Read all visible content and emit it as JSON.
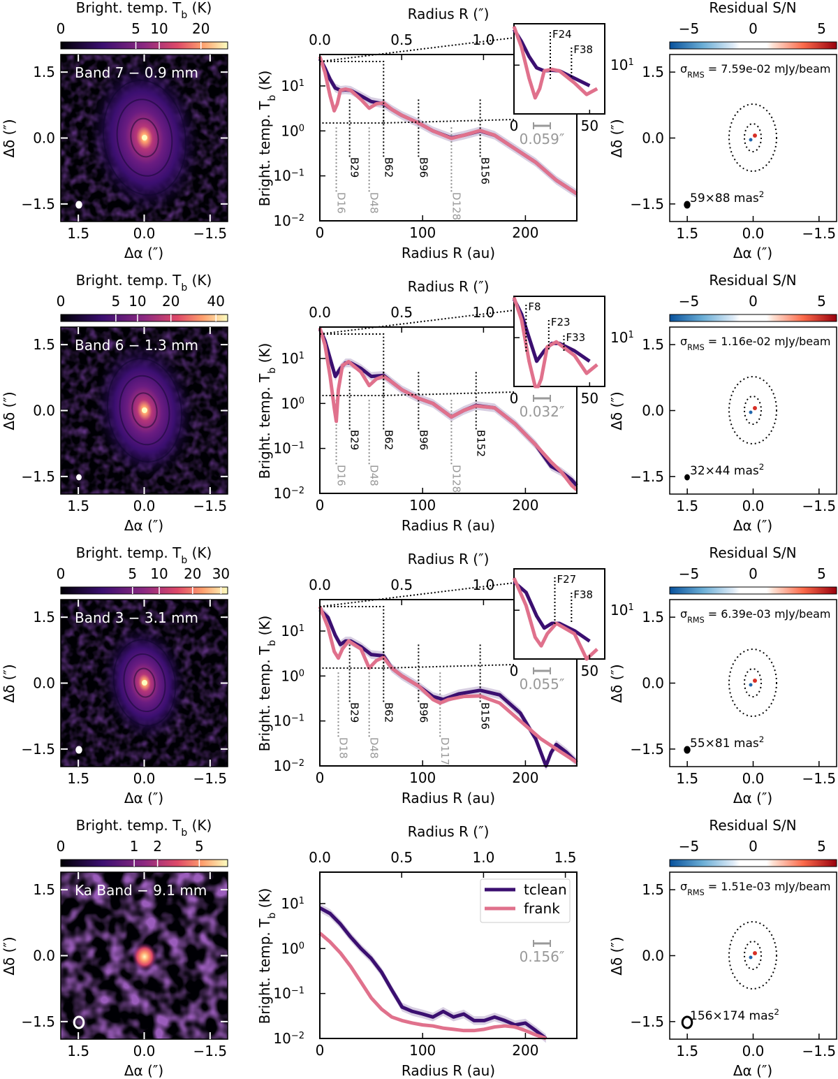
{
  "legend": {
    "tclean": "tclean",
    "frank": "frank"
  },
  "common": {
    "cbar_title": "Bright. temp. T",
    "cbar_title_sub": "b",
    "cbar_title_unit": " (K)",
    "resid_title": "Residual S/N",
    "ylabel_dec": "Δδ (″)",
    "xlabel_ra": "Δα (″)",
    "ylabel_tb": "Bright. temp. T",
    "ylabel_tb_sub": "b",
    "ylabel_tb_unit": " (K)",
    "xlabel_au": "Radius R (au)",
    "xlabel_arcsec": "Radius R (″)",
    "sigma_prefix": "σ",
    "sigma_sub": "RMS",
    "resid_ticks": [
      "−5",
      "0",
      "5"
    ],
    "img_ticks": [
      "1.5",
      "0.0",
      "−1.5"
    ],
    "prof_xticks": [
      "0",
      "100",
      "200"
    ],
    "prof_top_ticks": [
      "0.0",
      "0.5",
      "1.0",
      "1.5"
    ],
    "prof_yticks": [
      "10",
      "10",
      "10",
      "10"
    ],
    "prof_yexp": [
      "1",
      "0",
      "−1",
      "−2"
    ],
    "inset_xticks": [
      "0",
      "50"
    ],
    "inset_ytick": "10",
    "inset_yexp": "1"
  },
  "rows": [
    {
      "band_label": "Band 7 − 0.9 mm",
      "cbar_ticks": [
        "0",
        "5",
        "10",
        "20"
      ],
      "sigma_text": " = 7.59e-02 mJy/beam",
      "beam_text": "59×88 mas",
      "beam_sup": "2",
      "scale_text": "0.059″",
      "dashed_labels": [
        "D16",
        "D48",
        "D128"
      ],
      "dotted_labels": [
        "B29",
        "B62",
        "B96",
        "B156"
      ],
      "inset_labels": [
        "F24",
        "F38"
      ]
    },
    {
      "band_label": "Band 6 − 1.3 mm",
      "cbar_ticks": [
        "0",
        "5",
        "10",
        "20",
        "40"
      ],
      "sigma_text": " = 1.16e-02 mJy/beam",
      "beam_text": "32×44 mas",
      "beam_sup": "2",
      "scale_text": "0.032″",
      "dashed_labels": [
        "D16",
        "D48",
        "D128"
      ],
      "dotted_labels": [
        "B29",
        "B62",
        "B96",
        "B152"
      ],
      "inset_labels": [
        "F8",
        "F23",
        "F33"
      ]
    },
    {
      "band_label": "Band 3 − 3.1 mm",
      "cbar_ticks": [
        "0",
        "5",
        "10",
        "20",
        "30"
      ],
      "sigma_text": " = 6.39e-03 mJy/beam",
      "beam_text": "55×81 mas",
      "beam_sup": "2",
      "scale_text": "0.055″",
      "dashed_labels": [
        "D18",
        "D48",
        "D117"
      ],
      "dotted_labels": [
        "B29",
        "B62",
        "B96",
        "B156"
      ],
      "inset_labels": [
        "F27",
        "F38"
      ]
    },
    {
      "band_label": "Ka Band − 9.1 mm",
      "cbar_ticks": [
        "0",
        "1",
        "2",
        "5"
      ],
      "sigma_text": " = 1.51e-03 mJy/beam",
      "beam_text": "156×174 mas",
      "beam_sup": "2",
      "scale_text": "0.156″",
      "dashed_labels": [],
      "dotted_labels": [],
      "inset_labels": []
    }
  ],
  "chart_data": [
    {
      "type": "line",
      "title": "Band 7 − 0.9 mm",
      "xlabel": "Radius R (au)",
      "ylabel": "Bright. temp. Tb (K)",
      "xlim": [
        0,
        250
      ],
      "ylim": [
        0.01,
        50
      ],
      "yscale": "log",
      "dashed": [
        16,
        48,
        128
      ],
      "dotted": [
        29,
        62,
        96,
        156
      ],
      "series": [
        {
          "name": "tclean",
          "x": [
            0,
            5,
            10,
            15,
            20,
            25,
            30,
            40,
            50,
            62,
            70,
            80,
            96,
            110,
            128,
            140,
            156,
            170,
            190,
            210,
            230,
            250
          ],
          "y": [
            40,
            25,
            14,
            9,
            8,
            8.2,
            8,
            6,
            4.5,
            4,
            3,
            2.2,
            1.5,
            1.0,
            0.7,
            0.8,
            1.0,
            0.8,
            0.4,
            0.2,
            0.08,
            0.04
          ]
        },
        {
          "name": "frank",
          "x": [
            0,
            5,
            10,
            14,
            17,
            20,
            25,
            30,
            40,
            48,
            55,
            62,
            70,
            80,
            96,
            110,
            128,
            140,
            156,
            170,
            190,
            210,
            230,
            250
          ],
          "y": [
            45,
            20,
            6,
            2.8,
            4,
            8,
            8.5,
            8,
            5,
            3.2,
            4,
            4.2,
            3,
            2.2,
            1.5,
            1.0,
            0.68,
            0.8,
            1.02,
            0.8,
            0.4,
            0.2,
            0.08,
            0.04
          ]
        }
      ]
    },
    {
      "type": "line",
      "title": "Band 6 − 1.3 mm",
      "xlabel": "Radius R (au)",
      "ylabel": "Bright. temp. Tb (K)",
      "xlim": [
        0,
        250
      ],
      "ylim": [
        0.01,
        50
      ],
      "yscale": "log",
      "dashed": [
        16,
        48,
        128
      ],
      "dotted": [
        29,
        62,
        96,
        152
      ],
      "series": [
        {
          "name": "tclean",
          "x": [
            0,
            5,
            10,
            15,
            20,
            25,
            30,
            40,
            50,
            62,
            70,
            80,
            96,
            110,
            128,
            140,
            152,
            170,
            190,
            210,
            225,
            235,
            245,
            250
          ],
          "y": [
            45,
            25,
            10,
            4,
            6,
            8,
            8,
            6,
            4,
            4.2,
            3,
            2,
            1.3,
            1.0,
            0.5,
            0.7,
            0.9,
            0.8,
            0.35,
            0.12,
            0.04,
            0.03,
            0.02,
            0.015
          ]
        },
        {
          "name": "frank",
          "x": [
            0,
            5,
            10,
            14,
            16,
            18,
            22,
            28,
            40,
            48,
            55,
            62,
            70,
            80,
            96,
            110,
            128,
            140,
            152,
            170,
            190,
            210,
            225,
            235,
            245,
            250
          ],
          "y": [
            48,
            20,
            4,
            0.8,
            0.4,
            2,
            7,
            8.5,
            5,
            2.5,
            3.5,
            4,
            3,
            2,
            1.3,
            1.0,
            0.5,
            0.7,
            0.88,
            0.8,
            0.35,
            0.12,
            0.05,
            0.03,
            0.015,
            0.012
          ]
        }
      ]
    },
    {
      "type": "line",
      "title": "Band 3 − 3.1 mm",
      "xlabel": "Radius R (au)",
      "ylabel": "Bright. temp. Tb (K)",
      "xlim": [
        0,
        250
      ],
      "ylim": [
        0.01,
        50
      ],
      "yscale": "log",
      "dashed": [
        18,
        48,
        117
      ],
      "dotted": [
        29,
        62,
        96,
        156
      ],
      "series": [
        {
          "name": "tclean",
          "x": [
            0,
            8,
            15,
            20,
            25,
            30,
            40,
            50,
            62,
            70,
            80,
            96,
            110,
            120,
            135,
            156,
            175,
            195,
            210,
            220,
            225,
            230,
            240,
            250
          ],
          "y": [
            30,
            20,
            8,
            5,
            6,
            6,
            4.5,
            3,
            2.8,
            1.5,
            1.0,
            0.6,
            0.35,
            0.3,
            0.4,
            0.48,
            0.38,
            0.15,
            0.04,
            0.01,
            0.02,
            0.03,
            0.02,
            0.012
          ]
        },
        {
          "name": "frank",
          "x": [
            0,
            8,
            14,
            18,
            22,
            28,
            40,
            48,
            55,
            62,
            70,
            80,
            96,
            110,
            117,
            125,
            140,
            156,
            175,
            195,
            215,
            235,
            250
          ],
          "y": [
            35,
            12,
            3.5,
            2.5,
            4,
            6,
            4,
            1.5,
            2.2,
            2.6,
            1.5,
            1.0,
            0.6,
            0.3,
            0.25,
            0.3,
            0.35,
            0.36,
            0.25,
            0.1,
            0.04,
            0.02,
            0.012
          ]
        }
      ]
    },
    {
      "type": "line",
      "title": "Ka Band − 9.1 mm",
      "xlabel": "Radius R (au)",
      "ylabel": "Bright. temp. Tb (K)",
      "xlim": [
        0,
        250
      ],
      "ylim": [
        0.01,
        50
      ],
      "yscale": "log",
      "dashed": [],
      "dotted": [],
      "series": [
        {
          "name": "tclean",
          "x": [
            0,
            10,
            20,
            30,
            40,
            50,
            60,
            70,
            80,
            90,
            100,
            110,
            120,
            130,
            140,
            150,
            160,
            170,
            180,
            190,
            200,
            210,
            220
          ],
          "y": [
            8,
            6,
            3.5,
            1.8,
            1.0,
            0.6,
            0.3,
            0.12,
            0.05,
            0.04,
            0.035,
            0.03,
            0.04,
            0.03,
            0.035,
            0.025,
            0.025,
            0.03,
            0.025,
            0.02,
            0.022,
            0.015,
            0.01
          ]
        },
        {
          "name": "frank",
          "x": [
            0,
            10,
            20,
            30,
            40,
            50,
            60,
            70,
            80,
            90,
            100,
            110,
            120,
            130,
            140,
            150,
            160,
            170,
            180,
            190,
            200,
            210,
            220
          ],
          "y": [
            2.2,
            1.4,
            0.8,
            0.4,
            0.18,
            0.08,
            0.045,
            0.03,
            0.025,
            0.022,
            0.02,
            0.019,
            0.017,
            0.016,
            0.015,
            0.015,
            0.016,
            0.018,
            0.019,
            0.018,
            0.015,
            0.012,
            0.01
          ]
        }
      ]
    }
  ]
}
